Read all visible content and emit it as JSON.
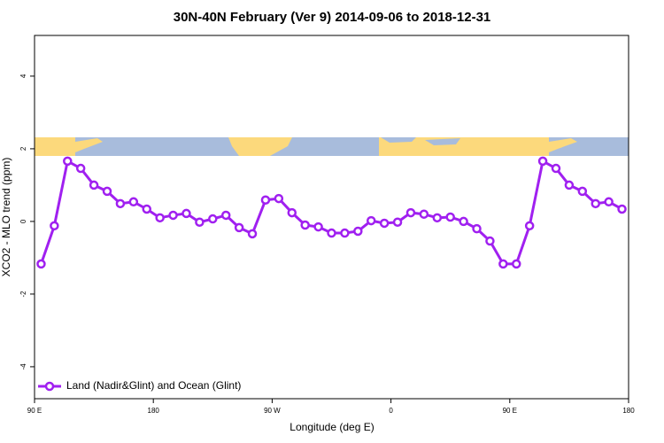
{
  "chart_data": {
    "type": "line",
    "title": "30N-40N February (Ver 9)   2014-09-06 to 2018-12-31",
    "x_label": "Longitude (deg E)",
    "y_label": "XCO2 - MLO trend (ppm)",
    "xlim": [
      90,
      540
    ],
    "xticks": [
      {
        "value": 90,
        "label": "90 E"
      },
      {
        "value": 180,
        "label": "180"
      },
      {
        "value": 270,
        "label": "90 W"
      },
      {
        "value": 360,
        "label": "0"
      },
      {
        "value": 450,
        "label": "90 E"
      },
      {
        "value": 540,
        "label": "180"
      }
    ],
    "ylim": [
      -4.88,
      5.12
    ],
    "yticks": [
      -4,
      -2,
      0,
      2,
      4
    ],
    "legend": "bottom-left",
    "x": [
      95,
      105,
      115,
      125,
      135,
      145,
      155,
      165,
      175,
      185,
      195,
      205,
      215,
      225,
      235,
      245,
      255,
      265,
      275,
      285,
      295,
      305,
      315,
      325,
      335,
      345,
      355,
      365,
      375,
      385,
      395,
      405,
      415,
      425,
      435,
      445,
      455,
      465,
      475,
      485,
      495,
      505,
      515,
      525,
      535
    ],
    "series": [
      {
        "name": "Land (Nadir&Glint) and Ocean (Glint)",
        "color": "#a020f0",
        "values": [
          -1.17,
          -0.12,
          1.66,
          1.46,
          1.0,
          0.83,
          0.49,
          0.54,
          0.34,
          0.1,
          0.17,
          0.22,
          -0.02,
          0.07,
          0.17,
          -0.17,
          -0.34,
          0.59,
          0.63,
          0.24,
          -0.1,
          -0.15,
          -0.32,
          -0.32,
          -0.27,
          0.02,
          -0.05,
          -0.02,
          0.24,
          0.2,
          0.1,
          0.12,
          0,
          -0.2,
          -0.54,
          -1.17,
          -1.17,
          -0.12,
          1.66,
          1.46,
          1.0,
          0.83,
          0.49,
          0.54,
          0.34
        ]
      }
    ]
  }
}
